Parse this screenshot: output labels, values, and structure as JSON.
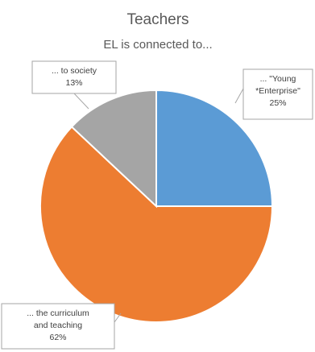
{
  "chart_data": {
    "type": "pie",
    "title": "Teachers",
    "subtitle": "EL is connected to...",
    "slices": [
      {
        "label_lines": [
          "... \"Young",
          "*Enterprise\""
        ],
        "value": 25,
        "value_label": "25%",
        "color": "#5b9bd5"
      },
      {
        "label_lines": [
          "... the curriculum",
          "and teaching"
        ],
        "value": 62,
        "value_label": "62%",
        "color": "#ed7d31"
      },
      {
        "label_lines": [
          "... to society"
        ],
        "value": 13,
        "value_label": "13%",
        "color": "#a5a5a5"
      }
    ],
    "legend": "none",
    "data_labels": "callouts"
  }
}
